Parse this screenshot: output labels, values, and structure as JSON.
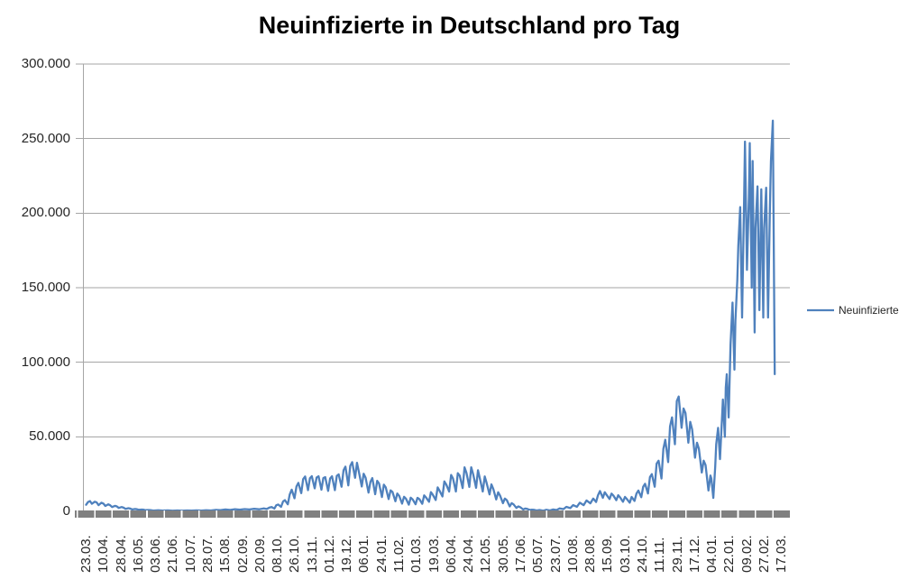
{
  "title": "Neuinfizierte in Deutschland pro Tag",
  "legend": {
    "series_label": "Neuinfizierte"
  },
  "colors": {
    "series_line": "#4F81BD",
    "gridline": "#A6A6A6",
    "axis_line": "#A6A6A6",
    "axis_band": "#808080",
    "tick_gap": "#FFFFFF",
    "label_text": "#262626",
    "title_text": "#000000"
  },
  "chart_data": {
    "type": "line",
    "title": "Neuinfizierte in Deutschland pro Tag",
    "xlabel": "",
    "ylabel": "",
    "ylim": [
      0,
      300000
    ],
    "grid": "horizontal",
    "legend_position": "right",
    "y_tick_labels": [
      "0",
      "50.000",
      "100.000",
      "150.000",
      "200.000",
      "250.000",
      "300.000"
    ],
    "x_tick_labels": [
      "23.03.",
      "10.04.",
      "28.04.",
      "16.05.",
      "03.06.",
      "21.06.",
      "10.07.",
      "28.07.",
      "15.08.",
      "02.09.",
      "20.09.",
      "08.10.",
      "26.10.",
      "13.11.",
      "01.12.",
      "19.12.",
      "06.01.",
      "24.01.",
      "11.02.",
      "01.03.",
      "19.03.",
      "06.04.",
      "24.04.",
      "12.05.",
      "30.05.",
      "17.06.",
      "05.07.",
      "23.07.",
      "10.08.",
      "28.08.",
      "15.09.",
      "03.10.",
      "24.10.",
      "11.11.",
      "29.11.",
      "17.12.",
      "04.01.",
      "22.01.",
      "09.02.",
      "27.02.",
      "17.03."
    ],
    "x_encoding": "day offset from first category 23.03.2020; values estimated from plot",
    "x_day_span": 724,
    "series": [
      {
        "name": "Neuinfizierte",
        "color": "#4F81BD",
        "points": [
          [
            0,
            4400
          ],
          [
            2,
            6200
          ],
          [
            4,
            6900
          ],
          [
            6,
            5100
          ],
          [
            9,
            6500
          ],
          [
            11,
            6000
          ],
          [
            13,
            4200
          ],
          [
            16,
            5800
          ],
          [
            18,
            5200
          ],
          [
            20,
            3600
          ],
          [
            23,
            4700
          ],
          [
            25,
            4100
          ],
          [
            27,
            2900
          ],
          [
            30,
            3700
          ],
          [
            32,
            3300
          ],
          [
            34,
            2300
          ],
          [
            37,
            2900
          ],
          [
            39,
            2500
          ],
          [
            41,
            1700
          ],
          [
            44,
            2100
          ],
          [
            46,
            1900
          ],
          [
            48,
            1300
          ],
          [
            51,
            1600
          ],
          [
            53,
            1400
          ],
          [
            55,
            1000
          ],
          [
            58,
            1200
          ],
          [
            60,
            1100
          ],
          [
            62,
            800
          ],
          [
            65,
            900
          ],
          [
            67,
            800
          ],
          [
            70,
            550
          ],
          [
            75,
            700
          ],
          [
            80,
            500
          ],
          [
            85,
            650
          ],
          [
            90,
            450
          ],
          [
            95,
            600
          ],
          [
            100,
            420
          ],
          [
            105,
            580
          ],
          [
            110,
            480
          ],
          [
            115,
            650
          ],
          [
            120,
            520
          ],
          [
            125,
            750
          ],
          [
            130,
            620
          ],
          [
            135,
            950
          ],
          [
            140,
            780
          ],
          [
            145,
            1250
          ],
          [
            150,
            980
          ],
          [
            155,
            1450
          ],
          [
            160,
            1150
          ],
          [
            165,
            1500
          ],
          [
            170,
            1250
          ],
          [
            175,
            1700
          ],
          [
            180,
            1400
          ],
          [
            185,
            2000
          ],
          [
            188,
            1600
          ],
          [
            191,
            2600
          ],
          [
            193,
            2900
          ],
          [
            196,
            1900
          ],
          [
            198,
            4100
          ],
          [
            200,
            4600
          ],
          [
            203,
            3000
          ],
          [
            205,
            6600
          ],
          [
            207,
            7500
          ],
          [
            210,
            4700
          ],
          [
            212,
            11300
          ],
          [
            214,
            14600
          ],
          [
            217,
            8800
          ],
          [
            219,
            16700
          ],
          [
            221,
            19100
          ],
          [
            224,
            12200
          ],
          [
            226,
            21600
          ],
          [
            228,
            23400
          ],
          [
            231,
            14200
          ],
          [
            233,
            22200
          ],
          [
            235,
            23600
          ],
          [
            238,
            15400
          ],
          [
            240,
            22700
          ],
          [
            242,
            23500
          ],
          [
            245,
            14500
          ],
          [
            247,
            22400
          ],
          [
            249,
            22900
          ],
          [
            252,
            13700
          ],
          [
            254,
            22100
          ],
          [
            256,
            23500
          ],
          [
            259,
            14200
          ],
          [
            261,
            23800
          ],
          [
            263,
            24800
          ],
          [
            266,
            16500
          ],
          [
            268,
            27600
          ],
          [
            270,
            30000
          ],
          [
            273,
            17400
          ],
          [
            275,
            30500
          ],
          [
            277,
            33000
          ],
          [
            280,
            22500
          ],
          [
            282,
            32600
          ],
          [
            284,
            26500
          ],
          [
            287,
            16700
          ],
          [
            289,
            25200
          ],
          [
            291,
            22500
          ],
          [
            294,
            12600
          ],
          [
            296,
            19700
          ],
          [
            298,
            22300
          ],
          [
            301,
            11500
          ],
          [
            303,
            20500
          ],
          [
            305,
            18700
          ],
          [
            308,
            9600
          ],
          [
            310,
            17900
          ],
          [
            312,
            16100
          ],
          [
            315,
            8200
          ],
          [
            317,
            14100
          ],
          [
            319,
            13000
          ],
          [
            322,
            6800
          ],
          [
            324,
            12000
          ],
          [
            326,
            10300
          ],
          [
            329,
            5200
          ],
          [
            331,
            9800
          ],
          [
            333,
            8500
          ],
          [
            336,
            4500
          ],
          [
            338,
            9200
          ],
          [
            340,
            8000
          ],
          [
            343,
            4800
          ],
          [
            345,
            9100
          ],
          [
            347,
            8200
          ],
          [
            350,
            5100
          ],
          [
            352,
            10700
          ],
          [
            354,
            9200
          ],
          [
            357,
            6400
          ],
          [
            359,
            12900
          ],
          [
            361,
            11100
          ],
          [
            364,
            7600
          ],
          [
            366,
            16100
          ],
          [
            368,
            13800
          ],
          [
            371,
            10000
          ],
          [
            373,
            20100
          ],
          [
            375,
            18000
          ],
          [
            378,
            13300
          ],
          [
            380,
            24400
          ],
          [
            382,
            22000
          ],
          [
            385,
            13300
          ],
          [
            387,
            25600
          ],
          [
            389,
            23900
          ],
          [
            392,
            15600
          ],
          [
            394,
            29500
          ],
          [
            396,
            25900
          ],
          [
            399,
            16400
          ],
          [
            401,
            29600
          ],
          [
            403,
            24800
          ],
          [
            406,
            15800
          ],
          [
            408,
            27600
          ],
          [
            410,
            22000
          ],
          [
            413,
            13300
          ],
          [
            415,
            23400
          ],
          [
            417,
            19000
          ],
          [
            420,
            11400
          ],
          [
            422,
            18100
          ],
          [
            424,
            15000
          ],
          [
            427,
            8000
          ],
          [
            429,
            12800
          ],
          [
            431,
            10500
          ],
          [
            434,
            5500
          ],
          [
            436,
            8600
          ],
          [
            438,
            7500
          ],
          [
            441,
            3300
          ],
          [
            443,
            5500
          ],
          [
            445,
            4700
          ],
          [
            448,
            2300
          ],
          [
            450,
            3300
          ],
          [
            452,
            2800
          ],
          [
            455,
            1300
          ],
          [
            457,
            1900
          ],
          [
            459,
            1700
          ],
          [
            462,
            900
          ],
          [
            464,
            1100
          ],
          [
            466,
            1000
          ],
          [
            469,
            600
          ],
          [
            472,
            900
          ],
          [
            476,
            500
          ],
          [
            479,
            1000
          ],
          [
            483,
            600
          ],
          [
            486,
            1300
          ],
          [
            490,
            900
          ],
          [
            493,
            2000
          ],
          [
            497,
            1500
          ],
          [
            500,
            3000
          ],
          [
            504,
            2200
          ],
          [
            507,
            4200
          ],
          [
            511,
            3100
          ],
          [
            514,
            5800
          ],
          [
            518,
            4200
          ],
          [
            521,
            7300
          ],
          [
            525,
            5400
          ],
          [
            528,
            8600
          ],
          [
            531,
            6300
          ],
          [
            533,
            10800
          ],
          [
            535,
            13600
          ],
          [
            538,
            9100
          ],
          [
            540,
            12800
          ],
          [
            542,
            11000
          ],
          [
            545,
            8300
          ],
          [
            547,
            11900
          ],
          [
            549,
            10600
          ],
          [
            552,
            7500
          ],
          [
            554,
            10800
          ],
          [
            556,
            9400
          ],
          [
            559,
            6400
          ],
          [
            561,
            9700
          ],
          [
            563,
            8300
          ],
          [
            566,
            5800
          ],
          [
            568,
            9700
          ],
          [
            571,
            7000
          ],
          [
            573,
            12000
          ],
          [
            575,
            14000
          ],
          [
            578,
            9500
          ],
          [
            580,
            16500
          ],
          [
            582,
            18500
          ],
          [
            585,
            12000
          ],
          [
            587,
            23000
          ],
          [
            589,
            25000
          ],
          [
            592,
            16500
          ],
          [
            594,
            32000
          ],
          [
            596,
            34000
          ],
          [
            599,
            22000
          ],
          [
            601,
            42000
          ],
          [
            603,
            48000
          ],
          [
            606,
            33000
          ],
          [
            608,
            57000
          ],
          [
            610,
            63000
          ],
          [
            613,
            45000
          ],
          [
            615,
            74000
          ],
          [
            617,
            77000
          ],
          [
            620,
            56000
          ],
          [
            622,
            69000
          ],
          [
            624,
            66000
          ],
          [
            627,
            46000
          ],
          [
            629,
            60000
          ],
          [
            631,
            55000
          ],
          [
            634,
            36000
          ],
          [
            636,
            46000
          ],
          [
            638,
            42000
          ],
          [
            641,
            26000
          ],
          [
            643,
            34000
          ],
          [
            645,
            31000
          ],
          [
            648,
            14000
          ],
          [
            650,
            24000
          ],
          [
            651,
            22000
          ],
          [
            653,
            9000
          ],
          [
            655,
            30000
          ],
          [
            656,
            45000
          ],
          [
            658,
            56000
          ],
          [
            660,
            35000
          ],
          [
            662,
            62000
          ],
          [
            663,
            75000
          ],
          [
            665,
            50000
          ],
          [
            666,
            83000
          ],
          [
            667,
            92000
          ],
          [
            669,
            63000
          ],
          [
            671,
            112000
          ],
          [
            672,
            126000
          ],
          [
            673,
            140000
          ],
          [
            675,
            95000
          ],
          [
            676,
            128000
          ],
          [
            678,
            155000
          ],
          [
            679,
            178000
          ],
          [
            681,
            204000
          ],
          [
            683,
            130000
          ],
          [
            685,
            208000
          ],
          [
            686,
            248000
          ],
          [
            688,
            162000
          ],
          [
            690,
            210000
          ],
          [
            691,
            247000
          ],
          [
            693,
            150000
          ],
          [
            694,
            235000
          ],
          [
            696,
            120000
          ],
          [
            697,
            190000
          ],
          [
            699,
            218000
          ],
          [
            701,
            135000
          ],
          [
            703,
            216000
          ],
          [
            705,
            130000
          ],
          [
            706,
            190000
          ],
          [
            708,
            217000
          ],
          [
            710,
            130000
          ],
          [
            712,
            205000
          ],
          [
            713,
            235000
          ],
          [
            715,
            262000
          ],
          [
            717,
            92000
          ]
        ]
      }
    ]
  }
}
